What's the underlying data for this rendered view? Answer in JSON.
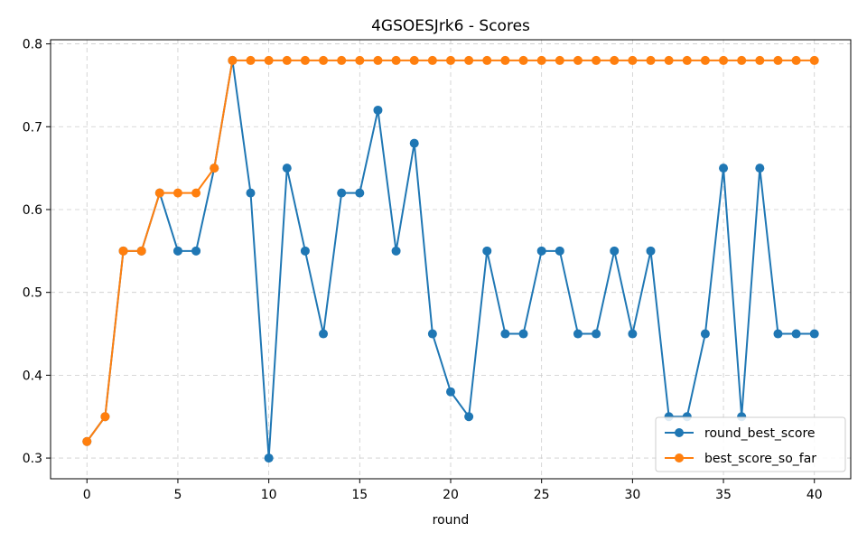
{
  "chart_data": {
    "type": "line",
    "title": "4GSOESJrk6 - Scores",
    "xlabel": "round",
    "ylabel": "",
    "xlim": [
      -2,
      42
    ],
    "ylim": [
      0.275,
      0.805
    ],
    "xticks": [
      0,
      5,
      10,
      15,
      20,
      25,
      30,
      35,
      40
    ],
    "yticks": [
      0.3,
      0.4,
      0.5,
      0.6,
      0.7,
      0.8
    ],
    "grid": true,
    "legend_position": "lower-right",
    "x": [
      0,
      1,
      2,
      3,
      4,
      5,
      6,
      7,
      8,
      9,
      10,
      11,
      12,
      13,
      14,
      15,
      16,
      17,
      18,
      19,
      20,
      21,
      22,
      23,
      24,
      25,
      26,
      27,
      28,
      29,
      30,
      31,
      32,
      33,
      34,
      35,
      36,
      37,
      38,
      39,
      40
    ],
    "series": [
      {
        "name": "round_best_score",
        "color": "#1f77b4",
        "values": [
          0.32,
          0.35,
          0.55,
          0.55,
          0.62,
          0.55,
          0.55,
          0.65,
          0.78,
          0.62,
          0.3,
          0.65,
          0.55,
          0.45,
          0.62,
          0.62,
          0.72,
          0.55,
          0.68,
          0.45,
          0.38,
          0.35,
          0.55,
          0.45,
          0.45,
          0.55,
          0.55,
          0.45,
          0.45,
          0.55,
          0.45,
          0.55,
          0.35,
          0.35,
          0.45,
          0.65,
          0.35,
          0.65,
          0.45,
          0.45,
          0.45
        ]
      },
      {
        "name": "best_score_so_far",
        "color": "#ff7f0e",
        "values": [
          0.32,
          0.35,
          0.55,
          0.55,
          0.62,
          0.62,
          0.62,
          0.65,
          0.78,
          0.78,
          0.78,
          0.78,
          0.78,
          0.78,
          0.78,
          0.78,
          0.78,
          0.78,
          0.78,
          0.78,
          0.78,
          0.78,
          0.78,
          0.78,
          0.78,
          0.78,
          0.78,
          0.78,
          0.78,
          0.78,
          0.78,
          0.78,
          0.78,
          0.78,
          0.78,
          0.78,
          0.78,
          0.78,
          0.78,
          0.78,
          0.78
        ]
      }
    ]
  }
}
